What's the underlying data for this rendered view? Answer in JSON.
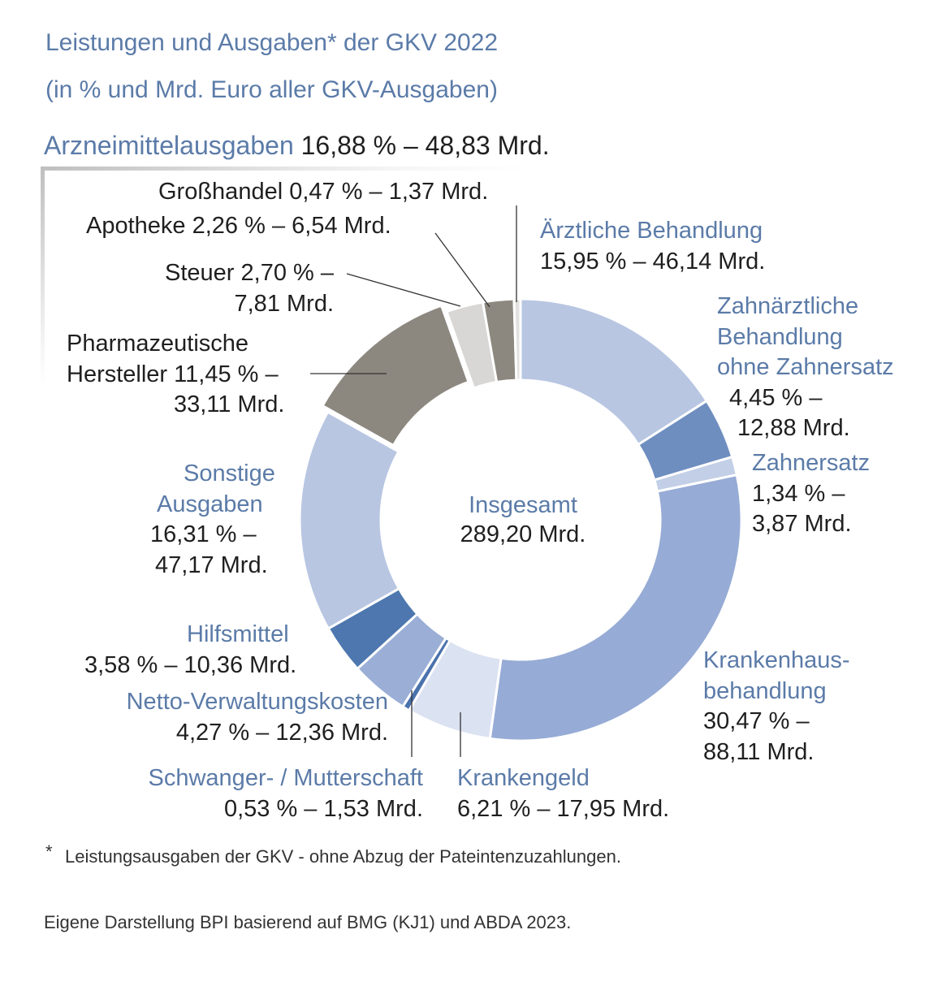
{
  "title": "Leistungen und Ausgaben* der GKV 2022",
  "subtitle": "(in % und Mrd. Euro aller GKV-Ausgaben)",
  "section": {
    "name": "Arzneimittelausgaben",
    "value": "16,88 % – 48,83 Mrd."
  },
  "center": {
    "label": "Insgesamt",
    "value": "289,20 Mrd."
  },
  "footnote": {
    "star": "*",
    "text": "Leistungsausgaben der GKV - ohne Abzug der Pateintenzuzahlungen."
  },
  "source": "Eigene Darstellung BPI basierend auf BMG (KJ1) und ABDA 2023.",
  "labels": {
    "grosshandel": {
      "name": "Großhandel",
      "value": "0,47 % – 1,37 Mrd."
    },
    "apotheke": {
      "name": "Apotheke",
      "value": "2,26 % – 6,54 Mrd."
    },
    "steuer": {
      "name": "Steuer",
      "value_a": "2,70 % –",
      "value_b": "7,81 Mrd."
    },
    "pharma": {
      "name_a": "Pharmazeutische",
      "name_b": "Hersteller",
      "value_a": "11,45 % –",
      "value_b": "33,11 Mrd."
    },
    "aerztlich": {
      "name": "Ärztliche Behandlung",
      "value": "15,95 % – 46,14 Mrd."
    },
    "zahnaerztlich": {
      "name_a": "Zahnärztliche",
      "name_b": "Behandlung",
      "name_c": "ohne Zahnersatz",
      "value_a": "4,45 % –",
      "value_b": "12,88 Mrd."
    },
    "zahnersatz": {
      "name": "Zahnersatz",
      "value_a": "1,34 % –",
      "value_b": "3,87 Mrd."
    },
    "krankenhaus": {
      "name_a": "Krankenhaus-",
      "name_b": "behandlung",
      "value_a": "30,47 % –",
      "value_b": "88,11 Mrd."
    },
    "krankengeld": {
      "name": "Krankengeld",
      "value": "6,21 % – 17,95 Mrd."
    },
    "schwanger": {
      "name": "Schwanger- / Mutterschaft",
      "value": "0,53 % – 1,53 Mrd."
    },
    "verwaltung": {
      "name": "Netto-Verwaltungskosten",
      "value": "4,27 % – 12,36 Mrd."
    },
    "hilfsmittel": {
      "name": "Hilfsmittel",
      "value": "3,58 % – 10,36 Mrd."
    },
    "sonstige": {
      "name_a": "Sonstige",
      "name_b": "Ausgaben",
      "value_a": "16,31 % –",
      "value_b": "47,17 Mrd."
    }
  },
  "chart_data": {
    "type": "pie",
    "title": "Leistungen und Ausgaben* der GKV 2022",
    "subtitle": "(in % und Mrd. Euro aller GKV-Ausgaben)",
    "total_label": "Insgesamt",
    "total": 289.2,
    "unit": "Mrd.",
    "slices": [
      {
        "key": "aerztlich",
        "name": "Ärztliche Behandlung",
        "percent": 15.95,
        "value": 46.14,
        "color": "#b8c6e2",
        "group": ""
      },
      {
        "key": "zahnaerztlich",
        "name": "Zahnärztliche Behandlung ohne Zahnersatz",
        "percent": 4.45,
        "value": 12.88,
        "color": "#6e8ec0",
        "group": ""
      },
      {
        "key": "zahnersatz",
        "name": "Zahnersatz",
        "percent": 1.34,
        "value": 3.87,
        "color": "#c2cfe7",
        "group": ""
      },
      {
        "key": "krankenhaus",
        "name": "Krankenhausbehandlung",
        "percent": 30.47,
        "value": 88.11,
        "color": "#96abd5",
        "group": ""
      },
      {
        "key": "krankengeld",
        "name": "Krankengeld",
        "percent": 6.21,
        "value": 17.95,
        "color": "#dbe2f1",
        "group": ""
      },
      {
        "key": "schwanger",
        "name": "Schwanger- / Mutterschaft",
        "percent": 0.53,
        "value": 1.53,
        "color": "#4a72ad",
        "group": ""
      },
      {
        "key": "verwaltung",
        "name": "Netto-Verwaltungskosten",
        "percent": 4.27,
        "value": 12.36,
        "color": "#9aaed6",
        "group": ""
      },
      {
        "key": "hilfsmittel",
        "name": "Hilfsmittel",
        "percent": 3.58,
        "value": 10.36,
        "color": "#4d77ae",
        "group": ""
      },
      {
        "key": "sonstige",
        "name": "Sonstige Ausgaben",
        "percent": 16.31,
        "value": 47.17,
        "color": "#b8c6e2",
        "group": ""
      },
      {
        "key": "pharma",
        "name": "Pharmazeutische Hersteller",
        "percent": 11.45,
        "value": 33.11,
        "color": "#8c8880",
        "group": "Arzneimittelausgaben"
      },
      {
        "key": "steuer",
        "name": "Steuer",
        "percent": 2.7,
        "value": 7.81,
        "color": "#d8d7d6",
        "group": "Arzneimittelausgaben"
      },
      {
        "key": "apotheke",
        "name": "Apotheke",
        "percent": 2.26,
        "value": 6.54,
        "color": "#8c8880",
        "group": "Arzneimittelausgaben"
      },
      {
        "key": "grosshandel",
        "name": "Großhandel",
        "percent": 0.47,
        "value": 1.37,
        "color": "#e2e1e0",
        "group": "Arzneimittelausgaben"
      }
    ],
    "group_total": {
      "name": "Arzneimittelausgaben",
      "percent": 16.88,
      "value": 48.83
    }
  }
}
